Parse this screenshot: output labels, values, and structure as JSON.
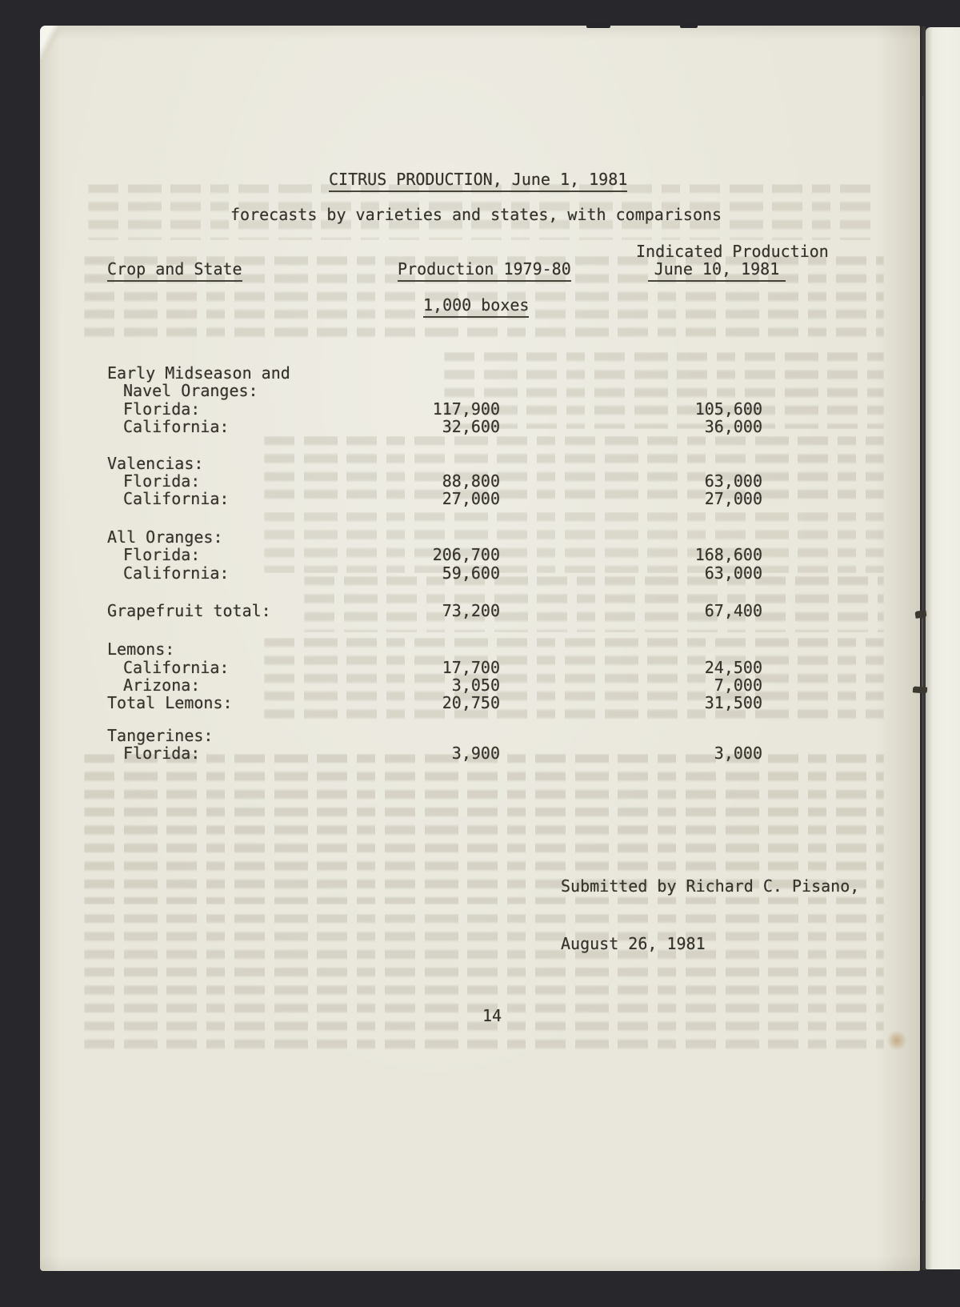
{
  "document": {
    "title": "CITRUS PRODUCTION, June 1, 1981",
    "subtitle": "forecasts by varieties and states, with comparisons",
    "unit_label": "1,000 boxes",
    "submitted_line1": "Submitted by Richard C. Pisano,",
    "submitted_line2": "August 26, 1981",
    "page_number": "14"
  },
  "table": {
    "header": {
      "col1": "Crop and State",
      "col2": "Production 1979-80",
      "col3_line1": "Indicated Production",
      "col3_line2": "June 10, 1981"
    },
    "rows": [
      {
        "label": "Early Midseason and",
        "indent": 0
      },
      {
        "label": "Navel Oranges:",
        "indent": 1
      },
      {
        "label": "Florida:",
        "indent": 1,
        "production_1979_80": "117,900",
        "indicated_june_10": "105,600"
      },
      {
        "label": "California:",
        "indent": 1,
        "production_1979_80": "32,600",
        "indicated_june_10": "36,000"
      },
      {
        "gap": 23
      },
      {
        "label": "Valencias:",
        "indent": 0
      },
      {
        "label": "Florida:",
        "indent": 1,
        "production_1979_80": "88,800",
        "indicated_june_10": "63,000"
      },
      {
        "label": "California:",
        "indent": 1,
        "production_1979_80": "27,000",
        "indicated_june_10": "27,000"
      },
      {
        "gap": 25
      },
      {
        "label": "All Oranges:",
        "indent": 0
      },
      {
        "label": "Florida:",
        "indent": 1,
        "production_1979_80": "206,700",
        "indicated_june_10": "168,600"
      },
      {
        "label": "California:",
        "indent": 1,
        "production_1979_80": "59,600",
        "indicated_june_10": "63,000"
      },
      {
        "gap": 25
      },
      {
        "label": "Grapefruit total:",
        "indent": 0,
        "production_1979_80": "73,200",
        "indicated_june_10": "67,400"
      },
      {
        "gap": 26
      },
      {
        "label": "Lemons:",
        "indent": 0
      },
      {
        "label": "California:",
        "indent": 1,
        "production_1979_80": "17,700",
        "indicated_june_10": "24,500"
      },
      {
        "label": "Arizona:",
        "indent": 1,
        "production_1979_80": "3,050",
        "indicated_june_10": "7,000"
      },
      {
        "label": "Total Lemons:",
        "indent": 0,
        "production_1979_80": "20,750",
        "indicated_june_10": "31,500"
      },
      {
        "gap": 18
      },
      {
        "label": "Tangerines:",
        "indent": 0
      },
      {
        "label": "Florida:",
        "indent": 1,
        "production_1979_80": "3,900",
        "indicated_june_10": "3,000"
      }
    ]
  },
  "colors": {
    "paper": "#e9e7db",
    "ink": "#35332b",
    "background": "#28282c"
  }
}
